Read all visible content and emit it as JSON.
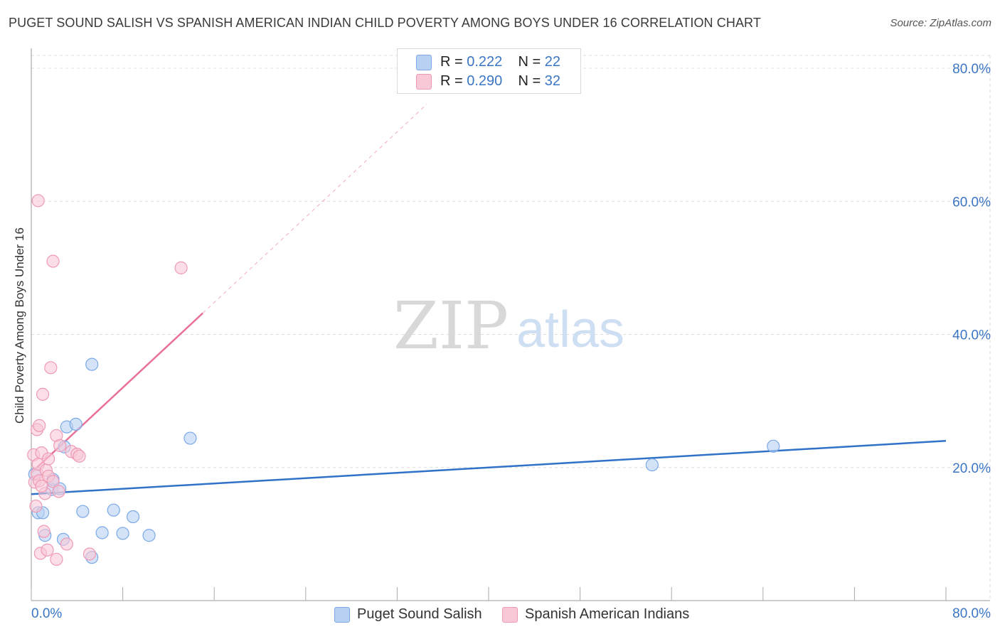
{
  "title": "PUGET SOUND SALISH VS SPANISH AMERICAN INDIAN CHILD POVERTY AMONG BOYS UNDER 16 CORRELATION CHART",
  "source": "Source: ZipAtlas.com",
  "watermark": {
    "zip": "ZIP",
    "atlas": "atlas"
  },
  "legend": {
    "series1": {
      "r_label": "R = ",
      "r_value": "0.222",
      "n_label": "N = ",
      "n_value": "22"
    },
    "series2": {
      "r_label": "R = ",
      "r_value": "0.290",
      "n_label": "N = ",
      "n_value": "32"
    }
  },
  "chart_data": {
    "type": "scatter",
    "title": "PUGET SOUND SALISH VS SPANISH AMERICAN INDIAN CHILD POVERTY AMONG BOYS UNDER 16 CORRELATION CHART",
    "xlabel": "",
    "ylabel": "Child Poverty Among Boys Under 16",
    "xlim": [
      0,
      80
    ],
    "ylim": [
      0,
      80
    ],
    "x_tick_labels": [
      "0.0%",
      "80.0%"
    ],
    "y_ticks": [
      20,
      40,
      60,
      80
    ],
    "y_tick_labels": [
      "20.0%",
      "40.0%",
      "60.0%",
      "80.0%"
    ],
    "grid": true,
    "series": [
      {
        "name": "Puget Sound Salish",
        "color": "#7aa9e6",
        "fill": "#b8d0f2",
        "line_color": "#2f72c8",
        "r": "0.222",
        "n": "22",
        "points": [
          [
            0.6,
            13.2
          ],
          [
            1.0,
            13.2
          ],
          [
            1.2,
            9.8
          ],
          [
            1.8,
            16.7
          ],
          [
            1.9,
            18.2
          ],
          [
            2.5,
            16.8
          ],
          [
            2.8,
            9.2
          ],
          [
            2.9,
            23.1
          ],
          [
            3.1,
            26.1
          ],
          [
            3.9,
            26.5
          ],
          [
            4.5,
            13.4
          ],
          [
            5.3,
            6.5
          ],
          [
            5.3,
            35.5
          ],
          [
            6.2,
            10.2
          ],
          [
            7.2,
            13.6
          ],
          [
            8.0,
            10.1
          ],
          [
            8.9,
            12.6
          ],
          [
            10.3,
            9.8
          ],
          [
            13.9,
            24.4
          ],
          [
            54.3,
            20.4
          ],
          [
            64.9,
            23.2
          ],
          [
            0.3,
            19.0
          ]
        ],
        "trend": {
          "x": [
            0,
            80
          ],
          "y": [
            16.0,
            24.0
          ]
        }
      },
      {
        "name": "Spanish American Indians",
        "color": "#ee9ab5",
        "fill": "#f8c8d7",
        "line_color": "#e8719a",
        "r": "0.290",
        "n": "32",
        "points": [
          [
            0.2,
            21.9
          ],
          [
            0.3,
            17.8
          ],
          [
            0.4,
            14.2
          ],
          [
            0.5,
            19.1
          ],
          [
            0.5,
            25.7
          ],
          [
            0.6,
            20.5
          ],
          [
            0.6,
            60.1
          ],
          [
            0.7,
            26.3
          ],
          [
            0.7,
            18.0
          ],
          [
            0.8,
            7.1
          ],
          [
            0.9,
            22.2
          ],
          [
            1.0,
            31.0
          ],
          [
            1.1,
            10.4
          ],
          [
            1.2,
            16.1
          ],
          [
            1.3,
            19.6
          ],
          [
            1.4,
            7.6
          ],
          [
            1.5,
            21.3
          ],
          [
            1.5,
            18.7
          ],
          [
            1.7,
            35.0
          ],
          [
            1.9,
            51.0
          ],
          [
            1.9,
            17.9
          ],
          [
            2.2,
            24.8
          ],
          [
            2.2,
            6.2
          ],
          [
            2.4,
            16.4
          ],
          [
            2.5,
            23.3
          ],
          [
            3.1,
            8.5
          ],
          [
            3.5,
            22.4
          ],
          [
            4.0,
            22.0
          ],
          [
            4.2,
            21.7
          ],
          [
            5.1,
            7.0
          ],
          [
            13.1,
            50.0
          ],
          [
            0.9,
            17.2
          ]
        ],
        "trend": {
          "x": [
            0,
            15.0
          ],
          "y": [
            19.2,
            43.2
          ]
        },
        "trend_dashed": {
          "x": [
            15.0,
            34.6
          ],
          "y": [
            43.2,
            74.6
          ]
        }
      }
    ]
  }
}
